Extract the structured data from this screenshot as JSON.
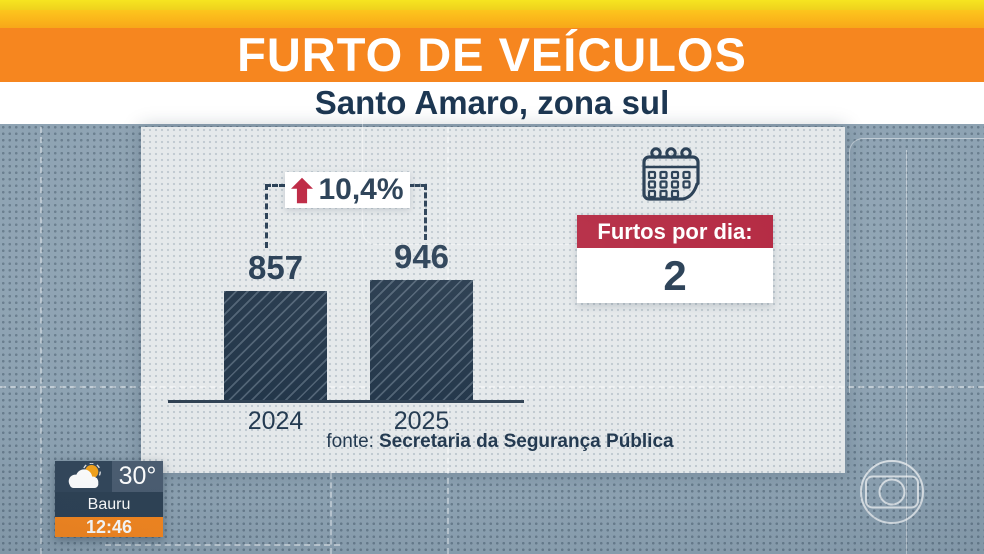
{
  "banner": {
    "title": "FURTO DE VEÍCULOS",
    "subtitle": "Santo Amaro, zona sul"
  },
  "chart_data": {
    "type": "bar",
    "title": "FURTO DE VEÍCULOS",
    "subtitle": "Santo Amaro, zona sul",
    "categories": [
      "2024",
      "2025"
    ],
    "values": [
      857,
      946
    ],
    "value_labels": [
      "857",
      "946"
    ],
    "ylim": [
      0,
      1000
    ],
    "grid": false,
    "legend": "none",
    "change": {
      "label": "10,4%",
      "direction": "up"
    },
    "source_prefix": "fonte:",
    "source": "Secretaria da Segurança Pública",
    "bar_color": "#1d3145",
    "bar_pattern": "diagonal-hatch"
  },
  "stat_box": {
    "label": "Furtos por dia:",
    "value": "2"
  },
  "weather": {
    "temperature": "30°",
    "city": "Bauru",
    "time": "12:46"
  },
  "icons": {
    "stat": "calendar-icon",
    "change": "arrow-up-icon",
    "weather": "cloud-sun-icon",
    "watermark": "globo-logo-icon"
  },
  "colors": {
    "yellow_strip": "#f6e520",
    "gold_strip": "#fbb81b",
    "orange": "#f6861f",
    "red": "#b1203a",
    "navy": "#20374e",
    "panel": "#e4e8ea",
    "background": "#8da2b2",
    "white": "#ffffff"
  }
}
